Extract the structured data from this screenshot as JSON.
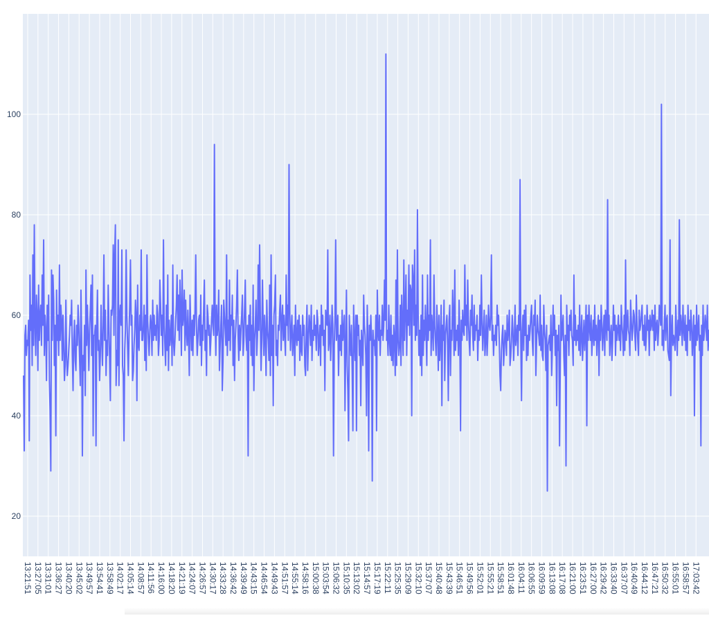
{
  "colors": {
    "plot_bg": "#E5ECF6",
    "grid": "#ffffff",
    "line": "#636EFA",
    "tick_text": "#2a3f5f"
  },
  "chart_data": {
    "type": "line",
    "title": "",
    "xlabel": "",
    "ylabel": "",
    "ylim": [
      12,
      120
    ],
    "yticks": [
      20,
      40,
      60,
      80,
      100
    ],
    "grid": true,
    "x_tick_labels": [
      "13:21:51",
      "13:27:05",
      "13:31:01",
      "13:36:27",
      "13:40:20",
      "13:45:02",
      "13:49:57",
      "13:54:41",
      "13:58:49",
      "14:02:17",
      "14:05:14",
      "14:08:57",
      "14:11:56",
      "14:16:00",
      "14:18:20",
      "14:21:19",
      "14:24:07",
      "14:26:57",
      "14:30:17",
      "14:33:28",
      "14:36:42",
      "14:39:49",
      "14:43:15",
      "14:46:54",
      "14:49:43",
      "14:51:57",
      "14:55:14",
      "14:58:16",
      "15:00:38",
      "15:03:54",
      "15:06:32",
      "15:10:35",
      "15:13:02",
      "15:14:57",
      "15:17:19",
      "15:22:11",
      "15:25:35",
      "15:29:09",
      "15:32:10",
      "15:37:07",
      "15:40:48",
      "15:43:39",
      "15:46:51",
      "15:49:56",
      "15:52:01",
      "15:55:21",
      "15:58:51",
      "16:01:48",
      "16:04:11",
      "16:06:55",
      "16:09:59",
      "16:13:08",
      "16:17:08",
      "16:21:00",
      "16:23:51",
      "16:27:00",
      "16:29:42",
      "16:33:40",
      "16:37:07",
      "16:40:49",
      "16:44:12",
      "16:47:21",
      "16:50:32",
      "16:55:01",
      "16:58:57",
      "17:03:42"
    ],
    "series": [
      {
        "values": [
          48,
          33,
          56,
          58,
          52,
          55,
          54,
          59,
          35,
          68,
          57,
          62,
          50,
          72,
          54,
          78,
          58,
          52,
          64,
          60,
          49,
          66,
          55,
          60,
          62,
          54,
          68,
          58,
          75,
          52,
          60,
          57,
          47,
          62,
          55,
          64,
          47,
          41,
          29,
          69,
          55,
          68,
          63,
          50,
          58,
          36,
          65,
          55,
          60,
          52,
          70,
          55,
          62,
          59,
          51,
          60,
          54,
          47,
          50,
          63,
          52,
          48,
          50,
          53,
          56,
          60,
          58,
          63,
          52,
          45,
          55,
          59,
          51,
          49,
          58,
          54,
          62,
          58,
          52,
          46,
          65,
          55,
          32,
          52,
          49,
          58,
          44,
          69,
          54,
          62,
          56,
          49,
          57,
          61,
          66,
          52,
          68,
          36,
          56,
          56,
          58,
          34,
          58,
          65,
          53,
          55,
          47,
          52,
          62,
          55,
          50,
          58,
          72,
          55,
          61,
          48,
          55,
          52,
          66,
          58,
          51,
          43,
          61,
          60,
          62,
          74,
          56,
          72,
          78,
          46,
          53,
          50,
          75,
          46,
          60,
          62,
          58,
          73,
          50,
          48,
          35,
          53,
          57,
          73,
          60,
          54,
          48,
          56,
          62,
          71,
          58,
          60,
          47,
          49,
          54,
          57,
          63,
          60,
          43,
          66,
          54,
          53,
          60,
          57,
          73,
          55,
          55,
          58,
          62,
          51,
          60,
          49,
          72,
          59,
          55,
          52,
          57,
          60,
          58,
          52,
          63,
          55,
          60,
          56,
          58,
          55,
          62,
          60,
          52,
          55,
          67,
          62,
          56,
          60,
          52,
          75,
          58,
          54,
          50,
          62,
          53,
          68,
          49,
          59,
          54,
          56,
          60,
          50,
          70,
          55,
          52,
          55,
          59,
          62,
          68,
          57,
          64,
          55,
          67,
          61,
          52,
          69,
          58,
          60,
          65,
          53,
          63,
          57,
          54,
          61,
          56,
          48,
          64,
          58,
          53,
          59,
          52,
          60,
          56,
          61,
          72,
          58,
          52,
          55,
          59,
          60,
          54,
          64,
          50,
          58,
          55,
          61,
          67,
          53,
          57,
          48,
          62,
          60,
          56,
          58,
          52,
          55,
          59,
          62,
          58,
          56,
          94,
          60,
          52,
          62,
          56,
          58,
          65,
          49,
          54,
          58,
          62,
          45,
          51,
          63,
          60,
          57,
          54,
          72,
          52,
          59,
          55,
          67,
          53,
          60,
          58,
          64,
          50,
          59,
          47,
          55,
          58,
          62,
          69,
          56,
          51,
          58,
          53,
          57,
          60,
          64,
          52,
          55,
          61,
          67,
          56,
          53,
          58,
          32,
          60,
          55,
          62,
          52,
          58,
          50,
          66,
          45,
          55,
          58,
          63,
          52,
          56,
          70,
          57,
          74,
          60,
          49,
          55,
          67,
          58,
          52,
          60,
          56,
          48,
          63,
          57,
          55,
          51,
          66,
          48,
          72,
          52,
          58,
          42,
          60,
          62,
          68,
          52,
          55,
          50,
          58,
          57,
          61,
          64,
          53,
          59,
          62,
          55,
          60,
          56,
          52,
          68,
          58,
          62,
          55,
          90,
          61,
          53,
          57,
          60,
          52,
          55,
          58,
          48,
          62,
          56,
          54,
          59,
          55,
          60,
          51,
          58,
          53,
          52,
          60,
          56,
          58,
          50,
          48,
          57,
          62,
          49,
          55,
          60,
          58,
          54,
          62,
          51,
          57,
          55,
          60,
          56,
          58,
          53,
          61,
          59,
          52,
          55,
          58,
          50,
          62,
          56,
          60,
          54,
          57,
          45,
          61,
          59,
          58,
          73,
          53,
          55,
          60,
          51,
          56,
          62,
          58,
          32,
          54,
          59,
          75,
          55,
          57,
          60,
          48,
          56,
          53,
          58,
          52,
          61,
          55,
          57,
          60,
          41,
          54,
          65,
          50,
          45,
          35,
          60,
          55,
          52,
          58,
          49,
          37,
          62,
          55,
          51,
          60,
          37,
          60,
          56,
          58,
          52,
          55,
          42,
          57,
          54,
          50,
          64,
          58,
          56,
          52,
          40,
          62,
          55,
          33,
          58,
          55,
          60,
          55,
          27,
          57,
          54,
          55,
          52,
          60,
          37,
          65,
          57,
          55,
          60,
          52,
          57,
          56,
          62,
          55,
          58,
          67,
          59,
          112,
          55,
          57,
          52,
          62,
          55,
          52,
          60,
          51,
          56,
          50,
          58,
          55,
          48,
          67,
          50,
          73,
          55,
          52,
          54,
          62,
          50,
          64,
          58,
          52,
          71,
          55,
          61,
          68,
          52,
          61,
          58,
          70,
          56,
          66,
          65,
          40,
          70,
          67,
          58,
          73,
          55,
          62,
          56,
          81,
          60,
          52,
          57,
          50,
          60,
          48,
          68,
          52,
          59,
          55,
          62,
          57,
          50,
          68,
          55,
          60,
          57,
          75,
          52,
          60,
          57,
          53,
          68,
          58,
          55,
          52,
          62,
          57,
          49,
          60,
          51,
          55,
          62,
          42,
          58,
          55,
          63,
          47,
          56,
          58,
          60,
          54,
          43,
          59,
          62,
          48,
          57,
          55,
          65,
          60,
          52,
          69,
          53,
          57,
          55,
          58,
          52,
          63,
          56,
          37,
          59,
          55,
          61,
          57,
          56,
          70,
          58,
          62,
          55,
          67,
          59,
          55,
          52,
          61,
          58,
          64,
          56,
          53,
          62,
          55,
          58,
          57,
          60,
          51,
          57,
          55,
          62,
          56,
          68,
          59,
          53,
          57,
          61,
          52,
          55,
          60,
          52,
          56,
          62,
          58,
          57,
          60,
          72,
          55,
          58,
          52,
          56,
          55,
          58,
          54,
          62,
          58,
          60,
          55,
          48,
          45,
          53,
          56,
          58,
          50,
          53,
          57,
          56,
          52,
          60,
          55,
          57,
          61,
          50,
          52,
          55,
          60,
          57,
          51,
          55,
          62,
          54,
          56,
          58,
          52,
          60,
          57,
          87,
          55,
          43,
          57,
          60,
          53,
          61,
          56,
          62,
          51,
          56,
          52,
          58,
          55,
          57,
          60,
          62,
          55,
          52,
          60,
          58,
          63,
          48,
          55,
          60,
          57,
          56,
          54,
          64,
          53,
          58,
          52,
          51,
          62,
          57,
          55,
          49,
          58,
          25,
          54,
          55,
          56,
          53,
          60,
          48,
          54,
          62,
          56,
          60,
          52,
          57,
          42,
          56,
          53,
          58,
          34,
          50,
          64,
          55,
          57,
          60,
          52,
          48,
          56,
          30,
          62,
          55,
          58,
          52,
          60,
          57,
          61,
          56,
          55,
          50,
          68,
          55,
          60,
          54,
          57,
          55,
          58,
          53,
          62,
          52,
          56,
          60,
          51,
          55,
          59,
          53,
          57,
          62,
          38,
          60,
          55,
          62,
          57,
          55,
          60,
          52,
          56,
          59,
          54,
          62,
          55,
          58,
          52,
          57,
          60,
          48,
          59,
          55,
          62,
          58,
          53,
          57,
          60,
          52,
          61,
          58,
          55,
          83,
          57,
          60,
          52,
          56,
          58,
          51,
          55,
          62,
          57,
          60,
          52,
          58,
          55,
          57,
          60,
          55,
          58,
          53,
          62,
          58,
          56,
          52,
          60,
          53,
          71,
          55,
          58,
          61,
          57,
          56,
          52,
          63,
          59,
          55,
          57,
          61,
          60,
          56,
          53,
          64,
          58,
          55,
          52,
          61,
          57,
          58,
          60,
          62,
          55,
          58,
          54,
          60,
          53,
          56,
          62,
          57,
          59,
          52,
          60,
          57,
          58,
          61,
          57,
          60,
          53,
          62,
          55,
          58,
          59,
          54,
          57,
          62,
          60,
          58,
          102,
          54,
          57,
          53,
          58,
          62,
          55,
          59,
          60,
          53,
          52,
          51,
          75,
          44,
          56,
          60,
          54,
          56,
          55,
          53,
          62,
          57,
          52,
          59,
          55,
          79,
          56,
          60,
          58,
          54,
          62,
          57,
          55,
          60,
          53,
          58,
          52,
          62,
          57,
          59,
          55,
          61,
          58,
          52,
          56,
          60,
          40,
          58,
          54,
          62,
          55,
          57,
          60,
          53,
          56,
          34,
          58,
          52,
          62,
          55,
          57,
          60,
          58,
          55,
          62,
          53,
          57,
          55,
          48,
          57,
          64,
          62,
          59,
          55,
          73
        ]
      }
    ]
  }
}
